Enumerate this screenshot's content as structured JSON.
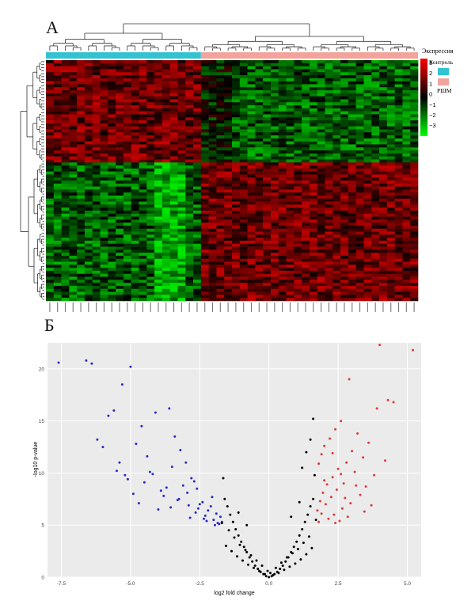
{
  "panels": {
    "a_label": "А",
    "b_label": "Б"
  },
  "chart_data": [
    {
      "type": "heatmap",
      "title": "",
      "legend": {
        "title": "Экспрессия",
        "groups": [
          {
            "name": "Контроль",
            "color": "#33c3d0"
          },
          {
            "name": "РШМ",
            "color": "#f2a39c"
          }
        ],
        "scale_ticks": [
          "3",
          "2",
          "1",
          "0",
          "−1",
          "−2",
          "−3"
        ],
        "scale_range": [
          -3,
          3
        ],
        "scale_colors": {
          "high": "#ff0000",
          "mid": "#000000",
          "low": "#00ff00"
        }
      },
      "groups": {
        "control_columns": 20,
        "cancer_columns": 28
      },
      "clusters": {
        "upper_row_fraction": 0.42,
        "upper_pattern": "high in Контроль, low in РШМ",
        "lower_pattern": "low in Контроль, high in РШМ"
      },
      "grid": {
        "rows": 80,
        "columns": 48
      }
    },
    {
      "type": "scatter",
      "title": "",
      "xlabel": "log2 fold change",
      "ylabel": "-log10 p-value",
      "xlim": [
        -8,
        5.5
      ],
      "ylim": [
        0,
        22.5
      ],
      "xticks": [
        "-7.5",
        "-5.0",
        "-2.5",
        "0.0",
        "2.5",
        "5.0"
      ],
      "xtick_values": [
        -7.5,
        -5.0,
        -2.5,
        0.0,
        2.5,
        5.0
      ],
      "yticks": [
        "0",
        "5",
        "10",
        "15",
        "20"
      ],
      "ytick_values": [
        0,
        5,
        10,
        15,
        20
      ],
      "grid": true,
      "panel_background": "#ebebeb",
      "series": [
        {
          "color": "#2b2bc9",
          "x": [
            -7.6,
            -6.6,
            -6.4,
            -5.0,
            -5.3,
            -5.6,
            -5.8,
            -6.0,
            -5.4,
            -5.2,
            -5.5,
            -6.2,
            -4.6,
            -4.8,
            -4.4,
            -4.1,
            -3.6,
            -3.4,
            -3.2,
            -3.0,
            -2.8,
            -2.6,
            -2.4,
            -2.2,
            -2.0,
            -1.8,
            -4.9,
            -4.5,
            -3.8,
            -3.5,
            -3.1,
            -2.9,
            -2.7,
            -2.5,
            -2.3,
            -2.1,
            -1.9,
            -1.7,
            -5.1,
            -4.3,
            -4.0,
            -3.7,
            -3.3,
            -2.95,
            -2.65,
            -2.35,
            -2.05,
            -1.85,
            -1.75,
            -4.7,
            -4.2,
            -3.9,
            -3.55,
            -3.25,
            -2.85,
            -2.55,
            -2.25,
            -1.95
          ],
          "y": [
            20.6,
            20.8,
            20.5,
            20.2,
            18.5,
            16.0,
            15.5,
            12.5,
            11.0,
            9.8,
            10.2,
            13.2,
            14.5,
            12.8,
            11.6,
            15.8,
            16.2,
            13.5,
            12.2,
            11.0,
            9.5,
            8.5,
            7.2,
            6.4,
            5.5,
            5.1,
            8.0,
            9.1,
            7.8,
            10.6,
            8.8,
            6.9,
            9.2,
            7.0,
            5.9,
            6.8,
            6.1,
            5.3,
            9.4,
            10.1,
            6.5,
            8.6,
            7.4,
            8.1,
            6.2,
            5.6,
            7.7,
            5.2,
            5.8,
            7.1,
            9.9,
            8.3,
            6.7,
            7.5,
            5.7,
            6.6,
            5.4,
            5.0
          ]
        },
        {
          "color": "#000000",
          "x": [
            -1.6,
            -1.5,
            -1.4,
            -1.3,
            -1.2,
            -1.1,
            -1.0,
            -0.9,
            -0.8,
            -0.7,
            -0.6,
            -0.5,
            -0.4,
            -0.3,
            -0.2,
            -0.1,
            0.0,
            0.1,
            0.2,
            0.3,
            0.4,
            0.5,
            0.6,
            0.7,
            0.8,
            0.9,
            1.0,
            1.1,
            1.2,
            1.3,
            1.4,
            1.5,
            1.6,
            -1.55,
            -1.35,
            -1.15,
            -0.95,
            -0.75,
            -0.55,
            -0.35,
            -0.15,
            0.15,
            0.35,
            0.55,
            0.75,
            0.95,
            1.15,
            1.35,
            1.55,
            -1.45,
            -1.25,
            -1.05,
            -0.85,
            -0.65,
            -0.45,
            -0.25,
            -0.05,
            0.05,
            0.25,
            0.45,
            0.65,
            0.85,
            1.05,
            1.25,
            1.45,
            -1.65,
            1.65,
            -1.7,
            1.7,
            -1.1,
            1.1,
            -0.8,
            0.8,
            1.2,
            1.35,
            1.5,
            1.6
          ],
          "y": [
            7.5,
            6.8,
            6.0,
            5.3,
            4.6,
            4.0,
            3.4,
            2.9,
            2.4,
            1.9,
            1.5,
            1.1,
            0.8,
            0.5,
            0.3,
            0.1,
            0.0,
            0.1,
            0.3,
            0.5,
            0.8,
            1.1,
            1.5,
            1.9,
            2.4,
            2.9,
            3.4,
            4.0,
            4.6,
            5.3,
            6.0,
            6.8,
            7.5,
            3.0,
            2.5,
            2.0,
            1.6,
            1.2,
            0.9,
            0.6,
            0.3,
            0.2,
            0.4,
            0.7,
            1.0,
            1.3,
            1.7,
            2.2,
            2.8,
            4.5,
            3.8,
            3.1,
            2.6,
            2.1,
            1.6,
            1.1,
            0.6,
            0.4,
            0.9,
            1.4,
            1.9,
            2.3,
            2.7,
            3.3,
            3.9,
            9.5,
            9.8,
            5.2,
            5.5,
            6.2,
            7.2,
            5.0,
            5.8,
            10.5,
            12.0,
            13.2,
            15.2
          ]
        },
        {
          "color": "#e03a3a",
          "x": [
            4.0,
            5.2,
            4.3,
            3.9,
            4.5,
            2.9,
            2.6,
            2.4,
            2.2,
            2.0,
            1.9,
            1.8,
            3.2,
            3.0,
            2.8,
            2.5,
            2.3,
            2.1,
            1.95,
            1.85,
            3.6,
            3.4,
            3.1,
            2.7,
            2.45,
            2.25,
            2.05,
            1.75,
            3.8,
            3.5,
            3.3,
            2.95,
            2.65,
            2.35,
            2.15,
            1.8,
            4.2,
            3.7,
            2.85,
            2.55,
            2.0,
            2.3,
            3.45,
            2.75,
            3.15,
            2.6,
            1.9,
            2.4
          ],
          "y": [
            22.3,
            21.8,
            17.0,
            16.2,
            16.8,
            19.0,
            15.0,
            14.2,
            13.3,
            12.6,
            11.8,
            10.9,
            13.8,
            12.1,
            11.0,
            10.4,
            9.6,
            8.9,
            8.1,
            7.3,
            12.9,
            11.5,
            10.1,
            9.0,
            8.4,
            7.7,
            7.0,
            6.4,
            9.8,
            8.7,
            7.9,
            7.1,
            6.6,
            6.0,
            5.6,
            5.3,
            11.2,
            6.9,
            5.8,
            5.4,
            9.3,
            11.9,
            6.3,
            7.6,
            8.8,
            9.9,
            6.1,
            5.2
          ]
        }
      ]
    }
  ]
}
